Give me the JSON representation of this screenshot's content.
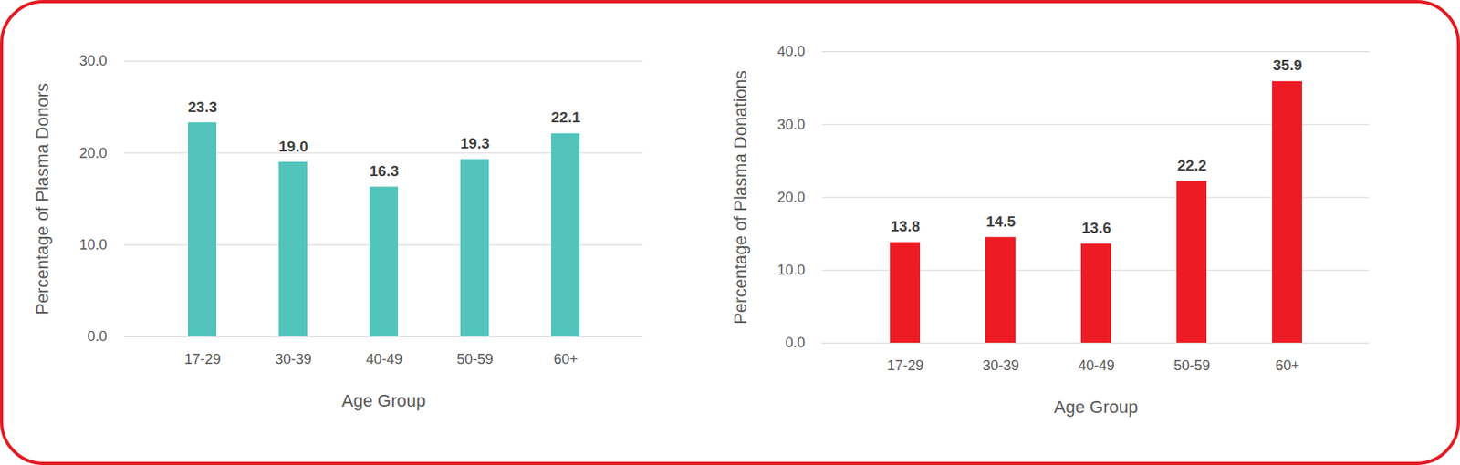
{
  "chart_data": [
    {
      "type": "bar",
      "categories": [
        "17-29",
        "30-39",
        "40-49",
        "50-59",
        "60+"
      ],
      "values": [
        23.3,
        19.0,
        16.3,
        19.3,
        22.1
      ],
      "value_labels": [
        "23.3",
        "19.0",
        "16.3",
        "19.3",
        "22.1"
      ],
      "color": "#52C4BC",
      "xlabel": "Age Group",
      "ylabel": "Percentage of Plasma Donors",
      "ylim": [
        0,
        30
      ],
      "yticks": [
        {
          "value": 0,
          "label": "0.0"
        },
        {
          "value": 10,
          "label": "10.0"
        },
        {
          "value": 20,
          "label": "20.0"
        },
        {
          "value": 30,
          "label": "30.0"
        }
      ],
      "grid": true,
      "data_labels": true
    },
    {
      "type": "bar",
      "categories": [
        "17-29",
        "30-39",
        "40-49",
        "50-59",
        "60+"
      ],
      "values": [
        13.8,
        14.5,
        13.6,
        22.2,
        35.9
      ],
      "value_labels": [
        "13.8",
        "14.5",
        "13.6",
        "22.2",
        "35.9"
      ],
      "color": "#ED1C24",
      "xlabel": "Age Group",
      "ylabel": "Percentage of Plasma Donations",
      "ylim": [
        0,
        40
      ],
      "yticks": [
        {
          "value": 0,
          "label": "0.0"
        },
        {
          "value": 10,
          "label": "10.0"
        },
        {
          "value": 20,
          "label": "20.0"
        },
        {
          "value": 30,
          "label": "30.0"
        },
        {
          "value": 40,
          "label": "40.0"
        }
      ],
      "grid": true,
      "data_labels": true
    }
  ]
}
